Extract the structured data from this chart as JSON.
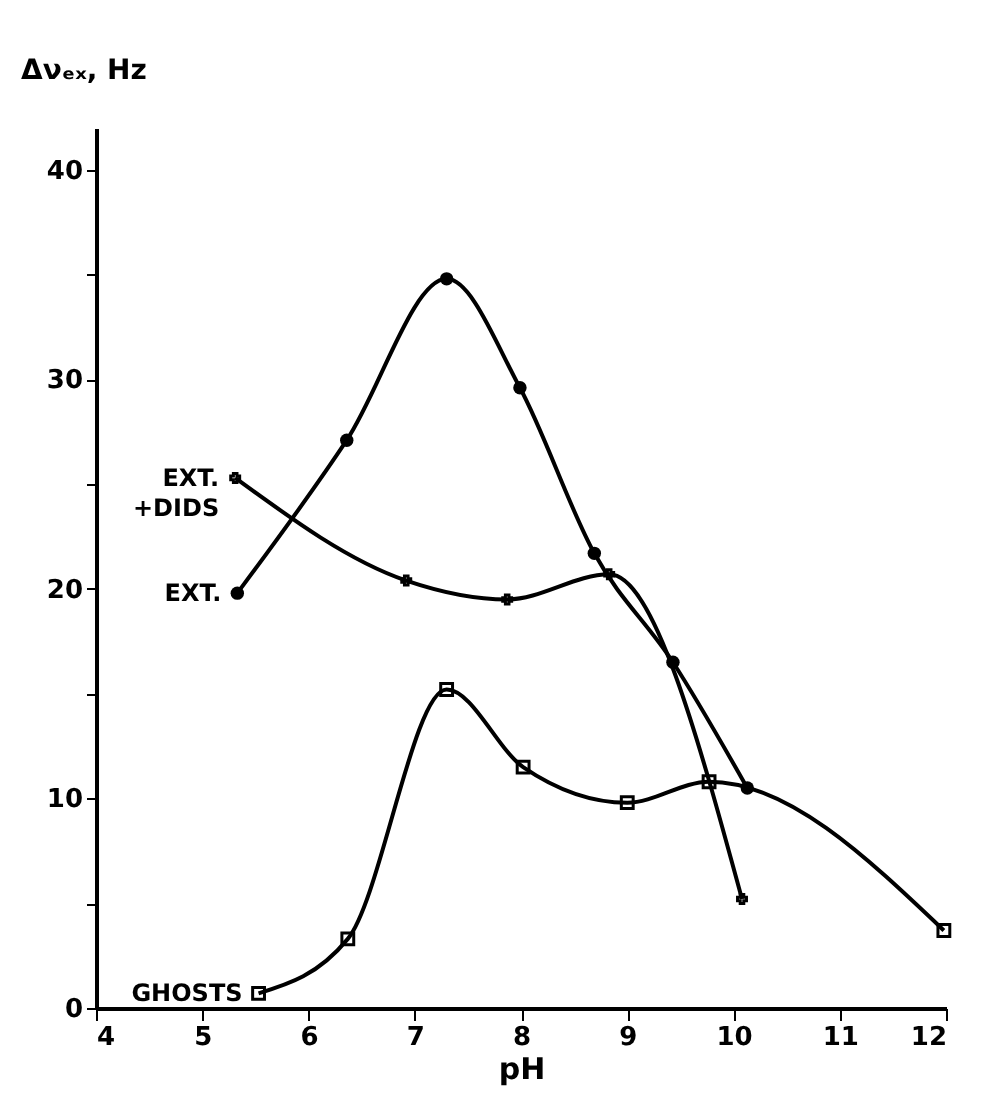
{
  "chart_data": {
    "type": "line",
    "xlabel": "pH",
    "ylabel": "Δνₑₓ, Hz",
    "xlim": [
      4,
      12
    ],
    "xticks": [
      4,
      5,
      6,
      7,
      8,
      9,
      10,
      11,
      12
    ],
    "ylim": [
      0,
      42
    ],
    "yticks": [
      0,
      {
        "value": 5,
        "label": null
      },
      10,
      {
        "value": 15,
        "label": null
      },
      20,
      {
        "value": 25,
        "label": null
      },
      30,
      {
        "value": 35,
        "label": null
      },
      40
    ],
    "grid": false,
    "line_style": "solid",
    "series": [
      {
        "name": "EXT.",
        "color": "#000000",
        "marker": "circle",
        "x": [
          5.33,
          6.36,
          7.3,
          7.99,
          8.69,
          9.43,
          10.13
        ],
        "values": [
          19.8,
          27.1,
          34.8,
          29.6,
          21.7,
          16.5,
          10.5
        ]
      },
      {
        "name": "EXT. +DIDS",
        "color": "#000000",
        "marker": "cross",
        "x": [
          5.31,
          6.92,
          7.87,
          8.83,
          10.08
        ],
        "values": [
          25.3,
          20.4,
          19.5,
          20.7,
          5.2
        ]
      },
      {
        "name": "GHOSTS",
        "color": "#000000",
        "marker": "square",
        "x": [
          5.53,
          6.37,
          7.3,
          8.02,
          9.0,
          9.77,
          11.98
        ],
        "values": [
          0.7,
          3.3,
          15.2,
          11.5,
          9.8,
          10.8,
          3.7
        ]
      }
    ]
  }
}
